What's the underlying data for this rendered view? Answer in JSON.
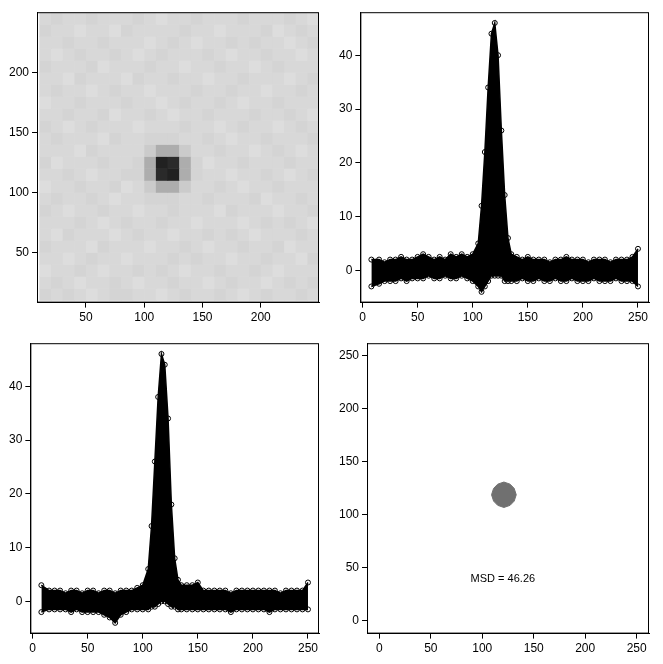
{
  "chart_data": [
    {
      "type": "heatmap",
      "x": [
        15,
        25,
        35,
        45,
        55,
        65,
        75,
        85,
        95,
        105,
        115,
        125,
        135,
        145,
        155,
        165,
        175,
        185,
        195,
        205,
        215,
        225,
        235,
        245
      ],
      "y": [
        15,
        25,
        35,
        45,
        55,
        65,
        75,
        85,
        95,
        105,
        115,
        125,
        135,
        145,
        155,
        165,
        175,
        185,
        195,
        205,
        215,
        225,
        235,
        245
      ],
      "z": [
        [
          1,
          0,
          1,
          0,
          -1,
          0,
          1,
          1,
          0,
          0,
          -1,
          0,
          1,
          0,
          0,
          1,
          0,
          -1,
          0,
          1,
          0,
          0,
          1,
          0
        ],
        [
          0,
          1,
          0,
          -1,
          0,
          0,
          1,
          0,
          -1,
          0,
          0,
          1,
          0,
          0,
          -1,
          0,
          1,
          0,
          0,
          -1,
          0,
          1,
          0,
          1
        ],
        [
          -1,
          0,
          0,
          1,
          0,
          -1,
          0,
          0,
          1,
          0,
          1,
          0,
          -1,
          0,
          0,
          1,
          0,
          0,
          1,
          0,
          -1,
          0,
          0,
          0
        ],
        [
          0,
          0,
          -1,
          0,
          1,
          0,
          0,
          -1,
          0,
          0,
          0,
          1,
          0,
          1,
          0,
          0,
          -1,
          0,
          0,
          1,
          0,
          0,
          -1,
          1
        ],
        [
          1,
          0,
          0,
          0,
          -1,
          1,
          0,
          0,
          0,
          -1,
          0,
          0,
          1,
          0,
          -1,
          0,
          0,
          1,
          0,
          0,
          1,
          -1,
          0,
          0
        ],
        [
          0,
          -1,
          1,
          0,
          0,
          0,
          -1,
          0,
          1,
          0,
          0,
          -1,
          0,
          0,
          1,
          0,
          1,
          0,
          -1,
          0,
          0,
          0,
          1,
          0
        ],
        [
          0,
          0,
          0,
          1,
          0,
          -1,
          0,
          1,
          0,
          0,
          1,
          0,
          0,
          -1,
          0,
          0,
          0,
          -1,
          0,
          1,
          0,
          1,
          0,
          -1
        ],
        [
          1,
          0,
          -1,
          0,
          0,
          1,
          0,
          0,
          -1,
          0,
          0,
          1,
          0,
          0,
          0,
          -1,
          1,
          0,
          0,
          0,
          -1,
          0,
          0,
          1
        ],
        [
          0,
          1,
          0,
          0,
          1,
          0,
          -1,
          0,
          0,
          1,
          1,
          1,
          0,
          0,
          1,
          0,
          0,
          0,
          1,
          -1,
          0,
          0,
          1,
          0
        ],
        [
          -1,
          0,
          0,
          1,
          0,
          0,
          1,
          -1,
          0,
          3,
          10,
          10,
          3,
          0,
          0,
          1,
          0,
          -1,
          0,
          0,
          1,
          0,
          0,
          0
        ],
        [
          0,
          0,
          1,
          0,
          -1,
          0,
          0,
          1,
          1,
          10,
          40,
          42,
          10,
          1,
          0,
          0,
          -1,
          0,
          0,
          1,
          0,
          -1,
          0,
          1
        ],
        [
          1,
          -1,
          0,
          0,
          0,
          1,
          0,
          0,
          1,
          10,
          42,
          40,
          10,
          1,
          -1,
          0,
          0,
          1,
          0,
          0,
          0,
          1,
          0,
          0
        ],
        [
          0,
          0,
          0,
          -1,
          1,
          0,
          0,
          0,
          0,
          3,
          10,
          10,
          3,
          0,
          0,
          1,
          0,
          0,
          -1,
          0,
          1,
          0,
          -1,
          0
        ],
        [
          0,
          1,
          0,
          0,
          0,
          -1,
          1,
          0,
          0,
          1,
          1,
          1,
          0,
          0,
          1,
          0,
          -1,
          0,
          0,
          1,
          0,
          0,
          0,
          1
        ],
        [
          1,
          0,
          -1,
          0,
          1,
          0,
          0,
          0,
          -1,
          0,
          0,
          0,
          1,
          0,
          0,
          -1,
          0,
          1,
          0,
          0,
          -1,
          0,
          1,
          0
        ],
        [
          0,
          0,
          1,
          0,
          0,
          1,
          -1,
          0,
          0,
          1,
          0,
          -1,
          0,
          0,
          1,
          0,
          0,
          0,
          1,
          0,
          0,
          1,
          0,
          -1
        ],
        [
          -1,
          0,
          0,
          1,
          0,
          0,
          0,
          1,
          0,
          0,
          -1,
          0,
          1,
          0,
          0,
          1,
          0,
          -1,
          0,
          0,
          1,
          0,
          0,
          0
        ],
        [
          0,
          1,
          0,
          0,
          -1,
          0,
          1,
          0,
          0,
          -1,
          0,
          0,
          0,
          1,
          0,
          0,
          1,
          0,
          0,
          -1,
          0,
          0,
          1,
          0
        ],
        [
          0,
          0,
          -1,
          1,
          0,
          0,
          0,
          -1,
          1,
          0,
          0,
          1,
          0,
          0,
          -1,
          0,
          0,
          1,
          0,
          0,
          0,
          -1,
          0,
          1
        ],
        [
          1,
          0,
          0,
          0,
          1,
          -1,
          0,
          0,
          0,
          1,
          0,
          0,
          -1,
          0,
          0,
          1,
          0,
          0,
          -1,
          0,
          1,
          0,
          0,
          0
        ],
        [
          0,
          -1,
          0,
          1,
          0,
          0,
          1,
          0,
          -1,
          0,
          1,
          0,
          0,
          0,
          1,
          0,
          -1,
          0,
          0,
          1,
          0,
          0,
          -1,
          0
        ],
        [
          0,
          0,
          1,
          0,
          0,
          1,
          0,
          0,
          0,
          -1,
          0,
          1,
          0,
          -1,
          0,
          0,
          1,
          0,
          1,
          0,
          0,
          -1,
          0,
          1
        ],
        [
          1,
          0,
          0,
          -1,
          0,
          0,
          -1,
          1,
          0,
          0,
          0,
          0,
          1,
          0,
          0,
          -1,
          0,
          0,
          0,
          1,
          -1,
          0,
          1,
          0
        ],
        [
          0,
          1,
          0,
          0,
          1,
          0,
          0,
          0,
          1,
          0,
          -1,
          0,
          0,
          1,
          0,
          0,
          0,
          1,
          0,
          0,
          0,
          1,
          0,
          -1
        ]
      ],
      "zlim": [
        -5,
        45
      ],
      "xlim": [
        8,
        250
      ],
      "ylim": [
        8,
        250
      ],
      "xticks": [
        50,
        100,
        150,
        200
      ],
      "yticks": [
        50,
        100,
        150,
        200
      ],
      "grid": false
    },
    {
      "type": "scatter",
      "x": [
        8,
        15,
        20,
        25,
        30,
        35,
        40,
        45,
        50,
        55,
        60,
        65,
        70,
        75,
        80,
        85,
        90,
        95,
        100,
        105,
        108,
        111,
        114,
        117,
        120,
        123,
        126,
        129,
        132,
        135,
        140,
        145,
        150,
        155,
        160,
        165,
        170,
        175,
        180,
        185,
        190,
        195,
        200,
        205,
        210,
        215,
        220,
        225,
        230,
        235,
        240,
        245,
        250
      ],
      "y_max": [
        2,
        2,
        1.5,
        2,
        2,
        2.5,
        2,
        2,
        2.5,
        3,
        2.5,
        2,
        2.5,
        2,
        3,
        2.5,
        3,
        2.5,
        3,
        5,
        12,
        22,
        34,
        44,
        46,
        40,
        26,
        14,
        6,
        3,
        2.5,
        2,
        2.5,
        2,
        2,
        2,
        1.5,
        2,
        2,
        2.5,
        2,
        2,
        2,
        1.5,
        2,
        2,
        2,
        1.5,
        2,
        2,
        2,
        2.5,
        4
      ],
      "y_min": [
        -3,
        -2.5,
        -2,
        -2,
        -2,
        -1.5,
        -2,
        -1.5,
        -1.5,
        -1.5,
        -1,
        -1.5,
        -1.5,
        -1,
        -1.5,
        -1.5,
        -1,
        -1.5,
        -2,
        -3,
        -4,
        -3,
        -2,
        -1,
        -1,
        -1,
        -1,
        -2,
        -2,
        -2,
        -2,
        -1.5,
        -2,
        -2,
        -1.5,
        -2,
        -2,
        -1.5,
        -2,
        -2,
        -1.5,
        -2,
        -2,
        -2,
        -1.5,
        -2,
        -2,
        -2,
        -1.5,
        -2,
        -2,
        -2,
        -3
      ],
      "color": "#000000",
      "marker": "circle",
      "xlim": [
        -2,
        260
      ],
      "ylim": [
        -6,
        48
      ],
      "xticks": [
        0,
        50,
        100,
        150,
        200,
        250
      ],
      "yticks": [
        0,
        10,
        20,
        30,
        40
      ],
      "grid": false
    },
    {
      "type": "scatter",
      "x": [
        8,
        15,
        20,
        25,
        30,
        35,
        40,
        45,
        50,
        55,
        60,
        65,
        70,
        75,
        80,
        85,
        90,
        95,
        100,
        105,
        108,
        111,
        114,
        117,
        120,
        123,
        126,
        129,
        132,
        135,
        140,
        145,
        150,
        155,
        160,
        165,
        170,
        175,
        180,
        185,
        190,
        195,
        200,
        205,
        210,
        215,
        220,
        225,
        230,
        235,
        240,
        245,
        250
      ],
      "y_max": [
        3,
        2,
        2,
        2,
        1.5,
        2,
        2,
        1.5,
        2,
        2,
        1.5,
        2,
        2,
        1.5,
        2,
        2,
        2,
        2.5,
        3,
        6,
        14,
        26,
        38,
        46,
        44,
        34,
        18,
        8,
        4,
        3,
        3,
        3,
        3.5,
        2,
        2,
        2,
        2,
        2,
        1.5,
        2,
        2,
        2,
        2,
        2,
        2,
        2,
        2,
        1.5,
        2,
        2,
        2,
        2,
        3.5
      ],
      "y_min": [
        -2,
        -1.5,
        -1.5,
        -1.5,
        -1.5,
        -2,
        -1.5,
        -2,
        -2,
        -2,
        -2,
        -2.5,
        -3,
        -4,
        -2.5,
        -2,
        -1.5,
        -1.5,
        -1.5,
        -1.5,
        -1,
        -1,
        -0.5,
        0,
        0,
        -0.5,
        -1,
        -1,
        -1.5,
        -1.5,
        -1.5,
        -1.5,
        -1.5,
        -1.5,
        -1.5,
        -1.5,
        -1.5,
        -1.5,
        -2,
        -1.5,
        -1.5,
        -1.5,
        -1.5,
        -1.5,
        -1.5,
        -2,
        -1.5,
        -1.5,
        -1.5,
        -1.5,
        -1.5,
        -1.5,
        -1.5
      ],
      "color": "#000000",
      "marker": "circle",
      "xlim": [
        -2,
        260
      ],
      "ylim": [
        -6,
        48
      ],
      "xticks": [
        0,
        50,
        100,
        150,
        200,
        250
      ],
      "yticks": [
        0,
        10,
        20,
        30,
        40
      ],
      "grid": false
    },
    {
      "type": "region",
      "x": [
        121,
        127,
        131,
        133,
        131,
        127,
        121,
        115,
        111,
        109,
        111,
        115
      ],
      "y": [
        131,
        129,
        125,
        119,
        113,
        109,
        107,
        109,
        113,
        119,
        125,
        129
      ],
      "color": "#707070",
      "annotations": [
        {
          "text": "MSD = 46.26",
          "x": 120,
          "y": 40
        }
      ],
      "xlim": [
        -12,
        262
      ],
      "ylim": [
        -12,
        262
      ],
      "xticks": [
        0,
        50,
        100,
        150,
        200,
        250
      ],
      "yticks": [
        0,
        50,
        100,
        150,
        200,
        250
      ],
      "grid": false
    }
  ]
}
